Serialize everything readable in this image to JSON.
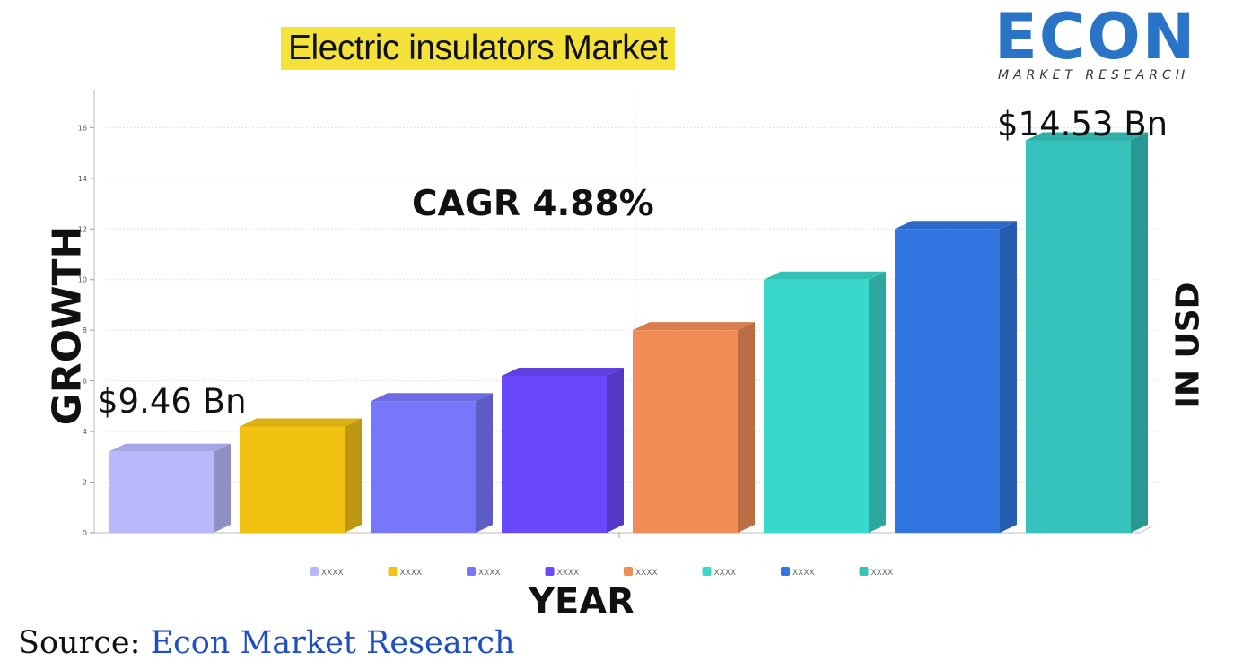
{
  "title": "Electric insulators Market",
  "logo": {
    "text": "ECON",
    "tagline": "MARKET RESEARCH"
  },
  "cagr": "CAGR 4.88%",
  "annotations": {
    "start": "$9.46 Bn",
    "end": "$14.53 Bn"
  },
  "source": {
    "prefix": "Source: ",
    "name": "Econ Market Research"
  },
  "chart_data": {
    "type": "bar",
    "xlabel": "YEAR",
    "ylabel": "GROWTH",
    "ylabel_right": "IN USD",
    "ylim": [
      0,
      17.5
    ],
    "yticks": [
      0,
      2,
      4,
      6,
      8,
      10,
      12,
      14,
      16
    ],
    "grid": true,
    "legend_position": "bottom",
    "categories": [
      "XXXX",
      "XXXX",
      "XXXX",
      "XXXX",
      "XXXX",
      "XXXX",
      "XXXX",
      "XXXX"
    ],
    "values": [
      3.2,
      4.2,
      5.2,
      6.2,
      8.0,
      10.0,
      12.0,
      15.5
    ],
    "colors": [
      "#b9b8fd",
      "#f2c213",
      "#7877fc",
      "#6a48fb",
      "#f08c56",
      "#3ad8cb",
      "#3176e0",
      "#35c2bb"
    ]
  }
}
